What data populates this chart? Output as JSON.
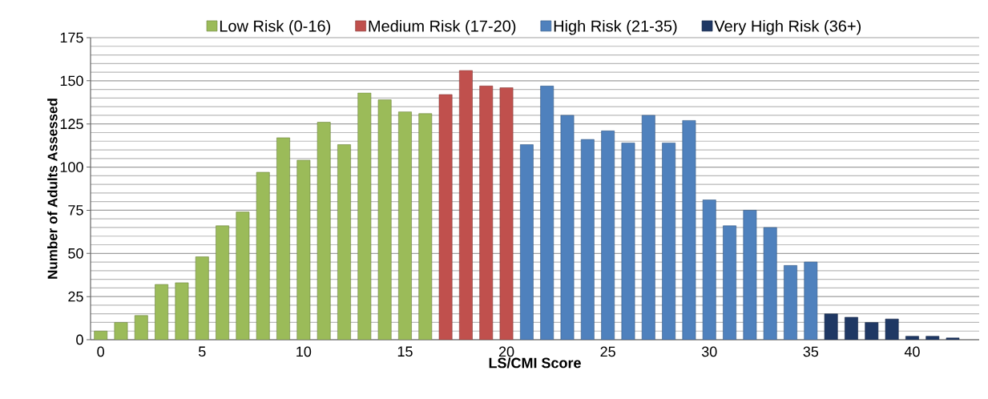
{
  "chart_data": {
    "type": "bar",
    "xlabel": "LS/CMI Score",
    "ylabel": "Number of Adults Assessed",
    "series": [
      {
        "name": "Low Risk (0-16)",
        "color": "#9bbb59",
        "x": [
          0,
          1,
          2,
          3,
          4,
          5,
          6,
          7,
          8,
          9,
          10,
          11,
          12,
          13,
          14,
          15,
          16
        ],
        "values": [
          5,
          10,
          14,
          32,
          33,
          48,
          66,
          74,
          97,
          117,
          104,
          126,
          113,
          143,
          139,
          132,
          131
        ]
      },
      {
        "name": "Medium Risk (17-20)",
        "color": "#c0504d",
        "x": [
          17,
          18,
          19,
          20
        ],
        "values": [
          142,
          156,
          147,
          146
        ]
      },
      {
        "name": "High Risk (21-35)",
        "color": "#4f81bd",
        "x": [
          21,
          22,
          23,
          24,
          25,
          26,
          27,
          28,
          29,
          30,
          31,
          32,
          33,
          34,
          35
        ],
        "values": [
          113,
          147,
          130,
          116,
          121,
          114,
          130,
          114,
          127,
          81,
          66,
          75,
          65,
          43,
          45
        ]
      },
      {
        "name": "Very High Risk (36+)",
        "color": "#1f3864",
        "x": [
          36,
          37,
          38,
          39,
          40,
          41,
          42
        ],
        "values": [
          15,
          13,
          10,
          12,
          2,
          2,
          1
        ]
      }
    ],
    "xlim": [
      -0.5,
      43.3
    ],
    "xticks": [
      0,
      5,
      10,
      15,
      20,
      25,
      30,
      35,
      40
    ],
    "ylim": [
      0,
      175
    ],
    "yticks": [
      0,
      25,
      50,
      75,
      100,
      125,
      150,
      175
    ],
    "grid": "y",
    "legend": "top"
  }
}
